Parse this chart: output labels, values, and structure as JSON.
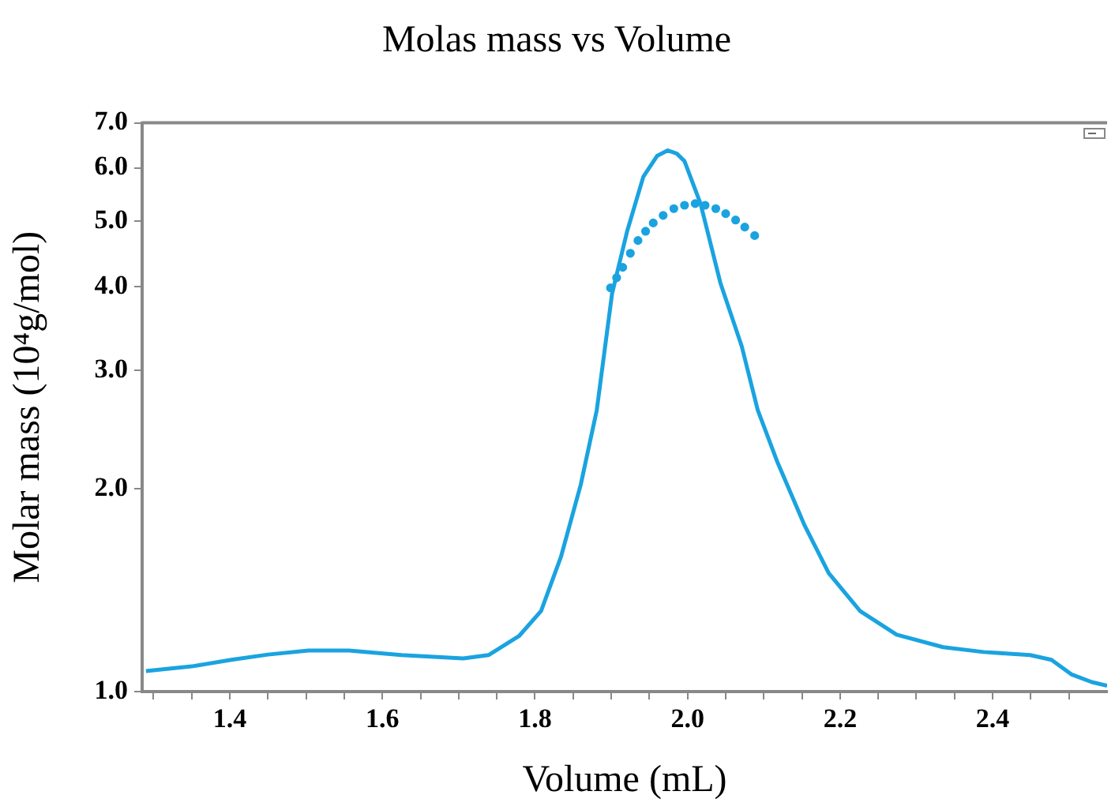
{
  "chart_data": {
    "type": "line",
    "title": "Molas mass vs Volume",
    "xlabel": "Volume (mL)",
    "ylabel": "Molar mass (10⁴g/mol)",
    "log": "y",
    "grid": false,
    "legend": false,
    "xlim": [
      1.285,
      2.55
    ],
    "ylim": [
      1,
      7
    ],
    "xticks": [
      {
        "value": 1.3,
        "label": null
      },
      {
        "value": 1.35,
        "label": null
      },
      1.4,
      {
        "value": 1.45,
        "label": null
      },
      {
        "value": 1.5,
        "label": null
      },
      {
        "value": 1.55,
        "label": null
      },
      1.6,
      {
        "value": 1.65,
        "label": null
      },
      {
        "value": 1.7,
        "label": null
      },
      {
        "value": 1.75,
        "label": null
      },
      1.8,
      {
        "value": 1.85,
        "label": null
      },
      {
        "value": 1.9,
        "label": null
      },
      {
        "value": 1.95,
        "label": null
      },
      {
        "value": 2,
        "label": "2.0"
      },
      {
        "value": 2.05,
        "label": null
      },
      {
        "value": 2.1,
        "label": null
      },
      {
        "value": 2.15,
        "label": null
      },
      2.2,
      {
        "value": 2.25,
        "label": null
      },
      {
        "value": 2.3,
        "label": null
      },
      {
        "value": 2.35,
        "label": null
      },
      2.4,
      {
        "value": 2.45,
        "label": null
      },
      {
        "value": 2.5,
        "label": null
      }
    ],
    "yticks": [
      {
        "value": 1,
        "label": "1.0"
      },
      {
        "value": 2,
        "label": "2.0"
      },
      {
        "value": 3,
        "label": "3.0"
      },
      {
        "value": 4,
        "label": "4.0"
      },
      {
        "value": 5,
        "label": "5.0"
      },
      {
        "value": 6,
        "label": "6.0"
      },
      {
        "value": 7,
        "label": "7.0"
      }
    ],
    "series": [
      {
        "marker": "none",
        "line_style": "solid",
        "color": "#1aa3e0",
        "x": [
          1.29,
          1.35,
          1.402,
          1.45,
          1.503,
          1.556,
          1.625,
          1.706,
          1.739,
          1.779,
          1.808,
          1.834,
          1.86,
          1.881,
          1.901,
          1.921,
          1.942,
          1.96,
          1.974,
          1.986,
          1.996,
          2.017,
          2.043,
          2.071,
          2.092,
          2.118,
          2.153,
          2.185,
          2.226,
          2.274,
          2.335,
          2.388,
          2.449,
          2.477,
          2.503,
          2.53,
          2.55
        ],
        "values": [
          1.073,
          1.09,
          1.115,
          1.135,
          1.151,
          1.151,
          1.133,
          1.12,
          1.133,
          1.209,
          1.318,
          1.585,
          2.03,
          2.62,
          3.9,
          4.84,
          5.82,
          6.25,
          6.37,
          6.3,
          6.14,
          5.31,
          4.05,
          3.26,
          2.62,
          2.19,
          1.77,
          1.5,
          1.318,
          1.215,
          1.164,
          1.145,
          1.133,
          1.115,
          1.061,
          1.033,
          1.02
        ]
      },
      {
        "type": "scatter",
        "marker": "circle",
        "color": "#1aa3e0",
        "x": [
          1.899,
          1.907,
          1.915,
          1.925,
          1.935,
          1.945,
          1.955,
          1.968,
          1.982,
          1.996,
          2.01,
          2.023,
          2.037,
          2.05,
          2.063,
          2.075,
          2.088
        ],
        "values": [
          3.98,
          4.12,
          4.27,
          4.48,
          4.68,
          4.83,
          4.97,
          5.1,
          5.22,
          5.28,
          5.31,
          5.28,
          5.22,
          5.13,
          5.02,
          4.9,
          4.76
        ]
      }
    ]
  }
}
